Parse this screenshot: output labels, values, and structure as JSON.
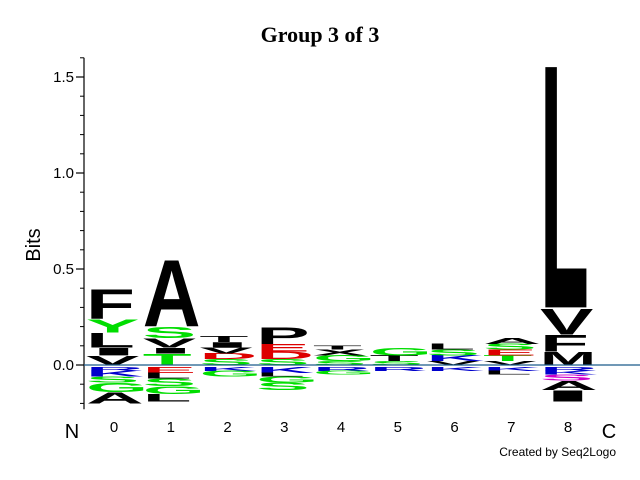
{
  "chart_data": {
    "type": "sequence-logo",
    "title": "Group 3 of 3",
    "ylabel": "Bits",
    "ylim": [
      -0.22,
      1.6
    ],
    "yticks": [
      "0.0",
      "0.5",
      "1.0",
      "1.5"
    ],
    "ytick_values": [
      0.0,
      0.5,
      1.0,
      1.5
    ],
    "yminor_step": 0.1,
    "positions": [
      "0",
      "1",
      "2",
      "3",
      "4",
      "5",
      "6",
      "7",
      "8"
    ],
    "n_label": "N",
    "c_label": "C",
    "credit": "Created by Seq2Logo",
    "colors": {
      "hydrophobic": "#000000",
      "polar": "#00dd00",
      "basic": "#0000cc",
      "acidic": "#dd0000",
      "other": "#cc00cc"
    },
    "columns": [
      {
        "position": "0",
        "positive": [
          {
            "letter": "V",
            "bits": 0.05,
            "color": "#000000"
          },
          {
            "letter": "I",
            "bits": 0.04,
            "color": "#000000"
          },
          {
            "letter": "L",
            "bits": 0.08,
            "color": "#000000"
          },
          {
            "letter": "Y",
            "bits": 0.07,
            "color": "#00dd00"
          },
          {
            "letter": "F",
            "bits": 0.16,
            "color": "#000000"
          }
        ],
        "negative": [
          {
            "letter": "R",
            "bits": 0.02,
            "color": "#0000cc"
          },
          {
            "letter": "K",
            "bits": 0.03,
            "color": "#0000cc"
          },
          {
            "letter": "S",
            "bits": 0.03,
            "color": "#00dd00"
          },
          {
            "letter": "G",
            "bits": 0.05,
            "color": "#00dd00"
          },
          {
            "letter": "A",
            "bits": 0.06,
            "color": "#000000"
          }
        ]
      },
      {
        "position": "1",
        "positive": [
          {
            "letter": "T",
            "bits": 0.06,
            "color": "#00dd00"
          },
          {
            "letter": "I",
            "bits": 0.03,
            "color": "#000000"
          },
          {
            "letter": "V",
            "bits": 0.05,
            "color": "#000000"
          },
          {
            "letter": "S",
            "bits": 0.06,
            "color": "#00dd00"
          },
          {
            "letter": "A",
            "bits": 0.36,
            "color": "#000000"
          }
        ],
        "negative": [
          {
            "letter": "E",
            "bits": 0.03,
            "color": "#dd0000"
          },
          {
            "letter": "L",
            "bits": 0.03,
            "color": "#000000"
          },
          {
            "letter": "S",
            "bits": 0.04,
            "color": "#00dd00"
          },
          {
            "letter": "G",
            "bits": 0.04,
            "color": "#00dd00"
          },
          {
            "letter": "L",
            "bits": 0.04,
            "color": "#000000"
          }
        ]
      },
      {
        "position": "2",
        "positive": [
          {
            "letter": "S",
            "bits": 0.03,
            "color": "#00dd00"
          },
          {
            "letter": "D",
            "bits": 0.03,
            "color": "#dd0000"
          },
          {
            "letter": "V",
            "bits": 0.03,
            "color": "#000000"
          },
          {
            "letter": "I",
            "bits": 0.03,
            "color": "#000000"
          },
          {
            "letter": "T",
            "bits": 0.03,
            "color": "#000000"
          }
        ],
        "negative": [
          {
            "letter": "K",
            "bits": 0.02,
            "color": "#0000cc"
          },
          {
            "letter": "G",
            "bits": 0.03,
            "color": "#00dd00"
          }
        ]
      },
      {
        "position": "3",
        "positive": [
          {
            "letter": "S",
            "bits": 0.03,
            "color": "#00dd00"
          },
          {
            "letter": "D",
            "bits": 0.04,
            "color": "#dd0000"
          },
          {
            "letter": "E",
            "bits": 0.04,
            "color": "#dd0000"
          },
          {
            "letter": "P",
            "bits": 0.09,
            "color": "#000000"
          }
        ],
        "negative": [
          {
            "letter": "K",
            "bits": 0.03,
            "color": "#0000cc"
          },
          {
            "letter": "L",
            "bits": 0.02,
            "color": "#000000"
          },
          {
            "letter": "G",
            "bits": 0.03,
            "color": "#00dd00"
          },
          {
            "letter": "S",
            "bits": 0.04,
            "color": "#00dd00"
          }
        ]
      },
      {
        "position": "4",
        "positive": [
          {
            "letter": "S",
            "bits": 0.02,
            "color": "#00dd00"
          },
          {
            "letter": "G",
            "bits": 0.03,
            "color": "#00dd00"
          },
          {
            "letter": "X",
            "bits": 0.03,
            "color": "#000000"
          },
          {
            "letter": "T",
            "bits": 0.02,
            "color": "#000000"
          }
        ],
        "negative": [
          {
            "letter": "R",
            "bits": 0.02,
            "color": "#0000cc"
          },
          {
            "letter": "G",
            "bits": 0.02,
            "color": "#00dd00"
          }
        ]
      },
      {
        "position": "5",
        "positive": [
          {
            "letter": "S",
            "bits": 0.02,
            "color": "#00dd00"
          },
          {
            "letter": "T",
            "bits": 0.03,
            "color": "#000000"
          },
          {
            "letter": "G",
            "bits": 0.04,
            "color": "#00dd00"
          }
        ],
        "negative": [
          {
            "letter": "R",
            "bits": 0.02,
            "color": "#0000cc"
          }
        ]
      },
      {
        "position": "6",
        "positive": [
          {
            "letter": "V",
            "bits": 0.02,
            "color": "#000000"
          },
          {
            "letter": "K",
            "bits": 0.03,
            "color": "#0000cc"
          },
          {
            "letter": "S",
            "bits": 0.03,
            "color": "#00dd00"
          },
          {
            "letter": "L",
            "bits": 0.03,
            "color": "#000000"
          }
        ],
        "negative": [
          {
            "letter": "K",
            "bits": 0.02,
            "color": "#0000cc"
          }
        ]
      },
      {
        "position": "7",
        "positive": [
          {
            "letter": "V",
            "bits": 0.02,
            "color": "#000000"
          },
          {
            "letter": "T",
            "bits": 0.03,
            "color": "#00dd00"
          },
          {
            "letter": "E",
            "bits": 0.03,
            "color": "#dd0000"
          },
          {
            "letter": "S",
            "bits": 0.03,
            "color": "#00dd00"
          },
          {
            "letter": "A",
            "bits": 0.03,
            "color": "#000000"
          }
        ],
        "negative": [
          {
            "letter": "K",
            "bits": 0.02,
            "color": "#0000cc"
          },
          {
            "letter": "L",
            "bits": 0.02,
            "color": "#000000"
          }
        ]
      },
      {
        "position": "8",
        "positive": [
          {
            "letter": "M",
            "bits": 0.07,
            "color": "#000000"
          },
          {
            "letter": "F",
            "bits": 0.09,
            "color": "#000000"
          },
          {
            "letter": "V",
            "bits": 0.14,
            "color": "#000000"
          },
          {
            "letter": "L",
            "bits": 1.31,
            "color": "#000000"
          }
        ],
        "negative": [
          {
            "letter": "R",
            "bits": 0.02,
            "color": "#0000cc"
          },
          {
            "letter": "K",
            "bits": 0.02,
            "color": "#0000cc"
          },
          {
            "letter": "S",
            "bits": 0.03,
            "color": "#cc00cc"
          },
          {
            "letter": "A",
            "bits": 0.05,
            "color": "#000000"
          },
          {
            "letter": "I",
            "bits": 0.06,
            "color": "#000000"
          }
        ]
      }
    ]
  }
}
